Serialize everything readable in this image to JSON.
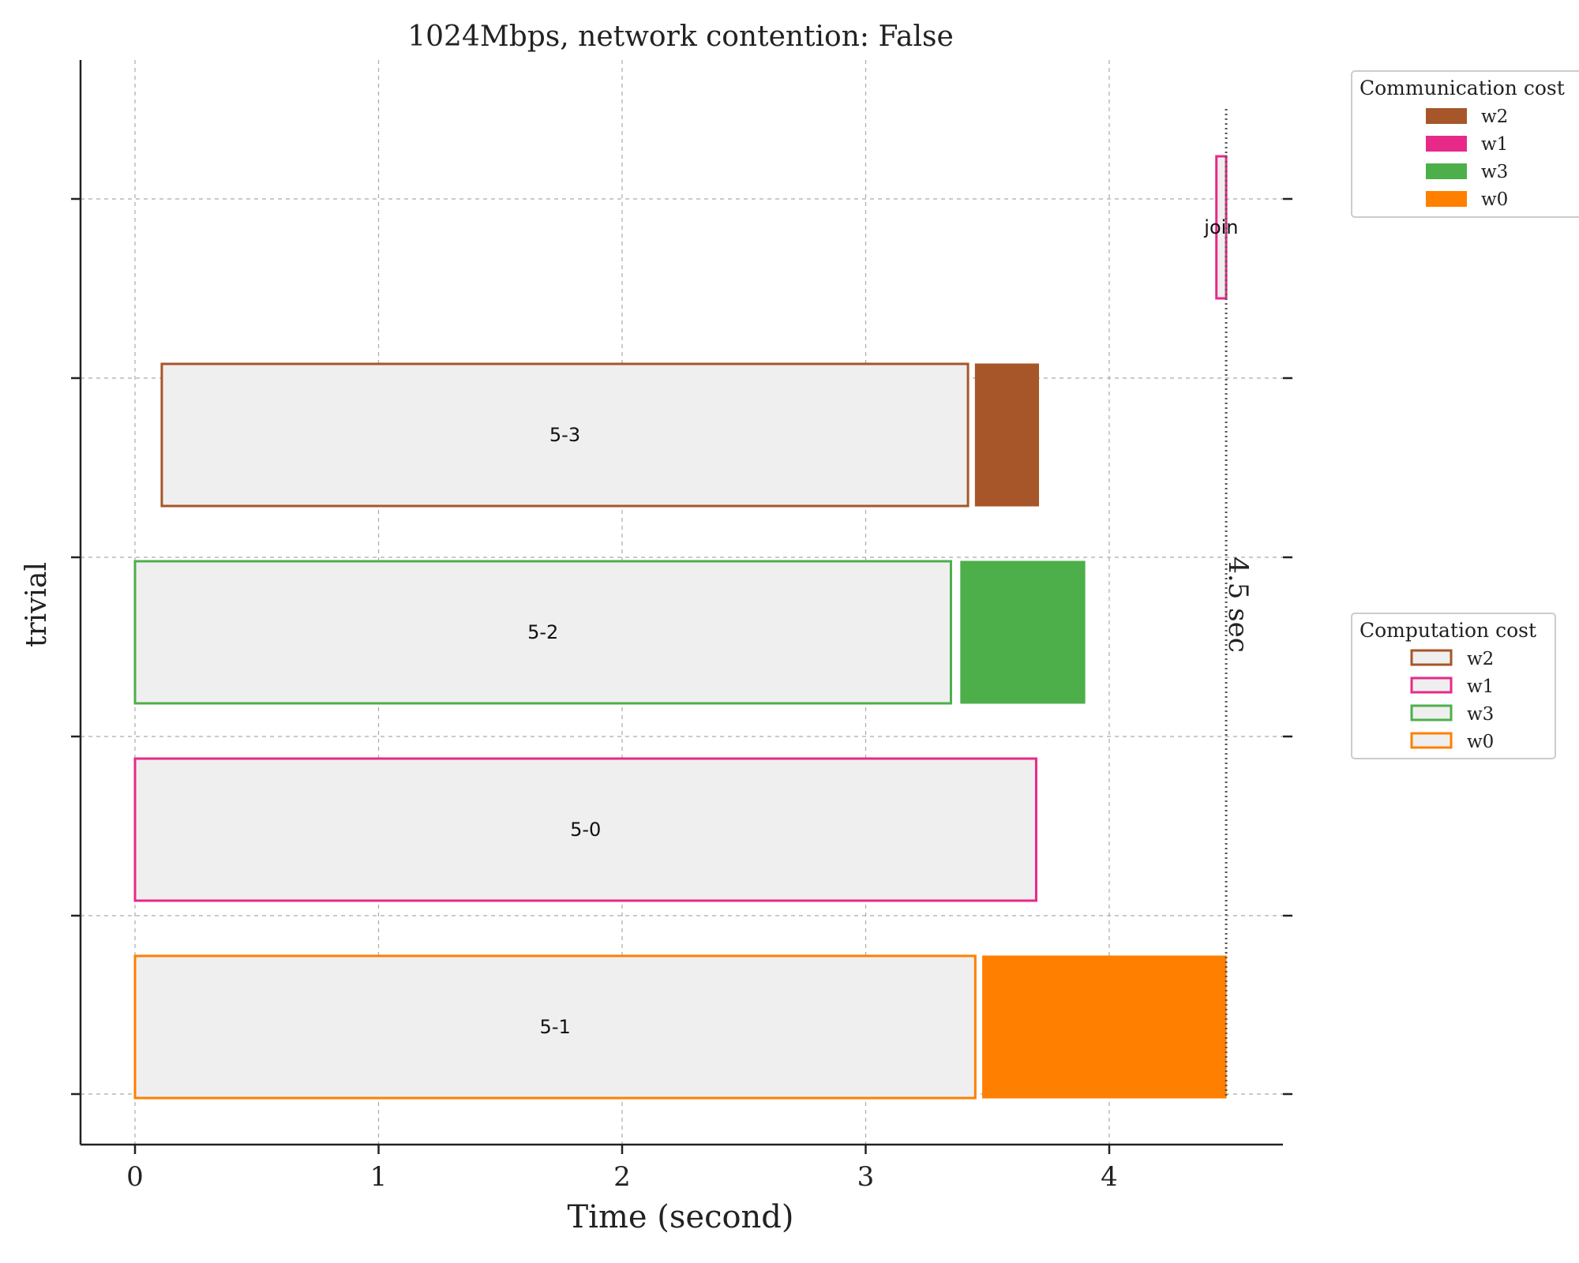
{
  "chart_data": {
    "type": "gantt",
    "title": "1024Mbps, network contention: False",
    "xlabel": "Time (second)",
    "ylabel": "trivial",
    "xlim": [
      -0.22,
      4.7
    ],
    "xticks": [
      0,
      1,
      2,
      3,
      4
    ],
    "xtick_labels": [
      "0",
      "1",
      "2",
      "3",
      "4"
    ],
    "grid": true,
    "rows": [
      {
        "worker": "w0",
        "color": "#ff7f00",
        "computation": {
          "label": "5-1",
          "start": 0.0,
          "end": 3.45
        },
        "communication": {
          "start": 3.48,
          "end": 4.48
        }
      },
      {
        "worker": "w1",
        "color": "#e7298a",
        "computation": {
          "label": "5-0",
          "start": 0.0,
          "end": 3.7
        }
      },
      {
        "worker": "w3",
        "color": "#4daf4a",
        "computation": {
          "label": "5-2",
          "start": 0.0,
          "end": 3.35
        },
        "communication": {
          "start": 3.39,
          "end": 3.9
        }
      },
      {
        "worker": "w2",
        "color": "#a65628",
        "computation": {
          "label": "5-3",
          "start": 0.11,
          "end": 3.42
        },
        "communication": {
          "start": 3.45,
          "end": 3.71
        }
      },
      {
        "worker": "w1",
        "color": "#e7298a",
        "computation": {
          "label": "join",
          "start": 4.44,
          "end": 4.48
        }
      }
    ],
    "total_time": {
      "value": 4.48,
      "label": "4.5 sec"
    },
    "legends": [
      {
        "title": "Communication cost",
        "position": "top-right",
        "style": "filled",
        "entries": [
          {
            "label": "w2",
            "color": "#a65628"
          },
          {
            "label": "w1",
            "color": "#e7298a"
          },
          {
            "label": "w3",
            "color": "#4daf4a"
          },
          {
            "label": "w0",
            "color": "#ff7f00"
          }
        ]
      },
      {
        "title": "Computation cost",
        "position": "center-right",
        "style": "outlined",
        "entries": [
          {
            "label": "w2",
            "color": "#a65628"
          },
          {
            "label": "w1",
            "color": "#e7298a"
          },
          {
            "label": "w3",
            "color": "#4daf4a"
          },
          {
            "label": "w0",
            "color": "#ff7f00"
          }
        ]
      }
    ]
  },
  "style": {
    "bar_face": "#efefef",
    "axis_color": "#222222",
    "grid_color": "#aaaaaa",
    "vline_color": "#555555"
  }
}
